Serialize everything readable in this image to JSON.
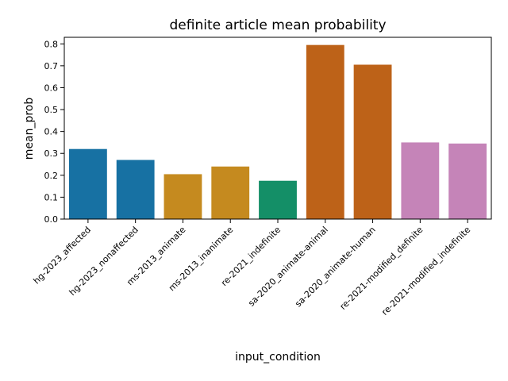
{
  "chart_data": {
    "type": "bar",
    "title": "definite article mean probability",
    "xlabel": "input_condition",
    "ylabel": "mean_prob",
    "ylim": [
      0,
      0.83
    ],
    "yticks": [
      "0.0",
      "0.1",
      "0.2",
      "0.3",
      "0.4",
      "0.5",
      "0.6",
      "0.7",
      "0.8"
    ],
    "categories": [
      "hg-2023_affected",
      "hg-2023_nonaffected",
      "ms-2013_animate",
      "ms-2013_inanimate",
      "re-2021_indefinite",
      "sa-2020_animate-animal",
      "sa-2020_animate-human",
      "re-2021-modified_definite",
      "re-2021-modified_indefinite"
    ],
    "values": [
      0.32,
      0.27,
      0.205,
      0.24,
      0.175,
      0.795,
      0.705,
      0.35,
      0.345
    ],
    "colors": [
      "#1771a3",
      "#1771a3",
      "#c58a1f",
      "#c58a1f",
      "#148f67",
      "#bd6218",
      "#bd6218",
      "#c584b8",
      "#c584b8"
    ],
    "grid": false,
    "legend": "none"
  }
}
